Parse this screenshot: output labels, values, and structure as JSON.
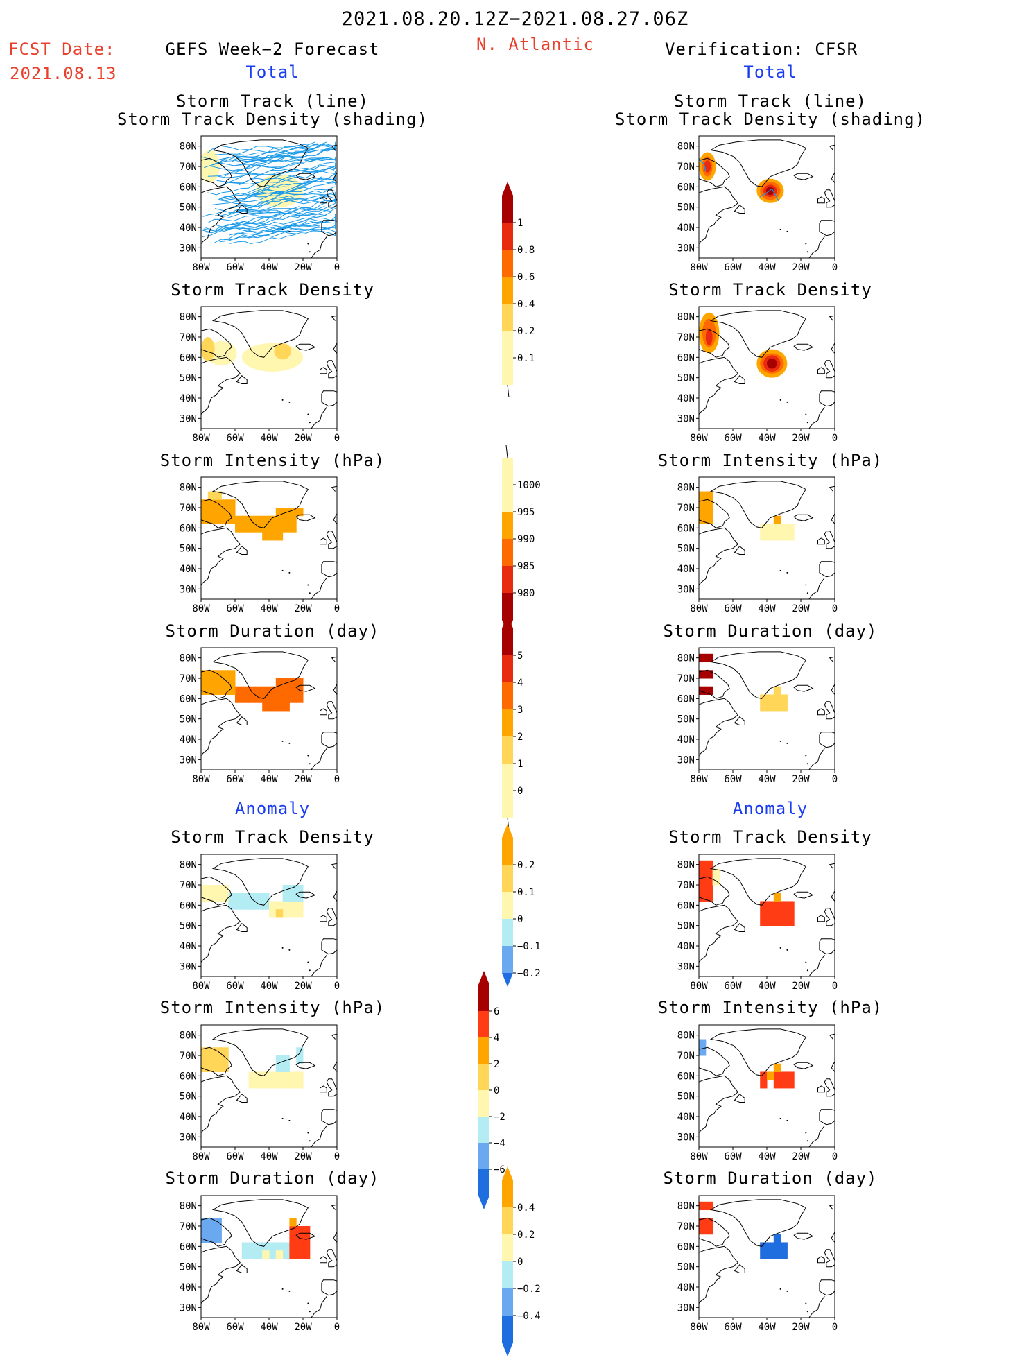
{
  "header": {
    "period": "2021.08.20.12Z−2021.08.27.06Z",
    "fcst_label": "FCST Date:",
    "fcst_date": "2021.08.13",
    "forecast_title": "GEFS Week−2 Forecast",
    "region": "N. Atlantic",
    "verification_title": "Verification: CFSR",
    "total_left": "Total",
    "total_right": "Total",
    "anomaly_left": "Anomaly",
    "anomaly_right": "Anomaly"
  },
  "panel_titles": {
    "track_line": "Storm Track (line)",
    "track_shading": "Storm Track Density (shading)",
    "density": "Storm Track Density",
    "intensity": "Storm Intensity (hPa)",
    "duration": "Storm Duration (day)"
  },
  "axes": {
    "lat_labels": [
      "80N",
      "70N",
      "60N",
      "50N",
      "40N",
      "30N"
    ],
    "lon_labels": [
      "80W",
      "60W",
      "40W",
      "20W",
      "0"
    ]
  },
  "colorbars": {
    "density_total": [
      "1",
      "0.8",
      "0.6",
      "0.4",
      "0.2",
      "0.1"
    ],
    "intensity_total": [
      "1000",
      "995",
      "990",
      "985",
      "980"
    ],
    "duration_total": [
      "5",
      "4",
      "3",
      "2",
      "1",
      "0"
    ],
    "density_anom": [
      "0.2",
      "0.1",
      "0",
      "−0.1",
      "−0.2"
    ],
    "intensity_anom": [
      "6",
      "4",
      "2",
      "0",
      "−2",
      "−4",
      "−6"
    ],
    "duration_anom": [
      "0.4",
      "0.2",
      "0",
      "−0.2",
      "−0.4"
    ]
  },
  "colors": {
    "title_red": "#e8402c",
    "label_blue": "#1a3cf0",
    "track_line": "#1a9ae8",
    "scale_warm": [
      "#fff6b0",
      "#ffd658",
      "#ffa500",
      "#ff6a00",
      "#e82a10",
      "#a60000"
    ],
    "scale_anom": [
      "#1e6ee0",
      "#6aa8f0",
      "#b4ecf4",
      "#fff6b0",
      "#ffd658",
      "#ffa500",
      "#ff3c14"
    ]
  },
  "chart_data": {
    "type": "heatmap",
    "x_range": [
      "80W",
      "0"
    ],
    "y_range": [
      "30N",
      "80N"
    ],
    "panels": [
      {
        "column": "GEFS Week−2 Forecast",
        "section": "Total",
        "title": "Storm Track (line) / Storm Track Density (shading)"
      },
      {
        "column": "Verification: CFSR",
        "section": "Total",
        "title": "Storm Track (line) / Storm Track Density (shading)"
      },
      {
        "column": "GEFS Week−2 Forecast",
        "section": "Total",
        "title": "Storm Track Density"
      },
      {
        "column": "Verification: CFSR",
        "section": "Total",
        "title": "Storm Track Density"
      },
      {
        "column": "GEFS Week−2 Forecast",
        "section": "Total",
        "title": "Storm Intensity (hPa)"
      },
      {
        "column": "Verification: CFSR",
        "section": "Total",
        "title": "Storm Intensity (hPa)"
      },
      {
        "column": "GEFS Week−2 Forecast",
        "section": "Total",
        "title": "Storm Duration (day)"
      },
      {
        "column": "Verification: CFSR",
        "section": "Total",
        "title": "Storm Duration (day)"
      },
      {
        "column": "GEFS Week−2 Forecast",
        "section": "Anomaly",
        "title": "Storm Track Density"
      },
      {
        "column": "Verification: CFSR",
        "section": "Anomaly",
        "title": "Storm Track Density"
      },
      {
        "column": "GEFS Week−2 Forecast",
        "section": "Anomaly",
        "title": "Storm Intensity (hPa)"
      },
      {
        "column": "Verification: CFSR",
        "section": "Anomaly",
        "title": "Storm Intensity (hPa)"
      },
      {
        "column": "GEFS Week−2 Forecast",
        "section": "Anomaly",
        "title": "Storm Duration (day)"
      },
      {
        "column": "Verification: CFSR",
        "section": "Anomaly",
        "title": "Storm Duration (day)"
      }
    ]
  }
}
